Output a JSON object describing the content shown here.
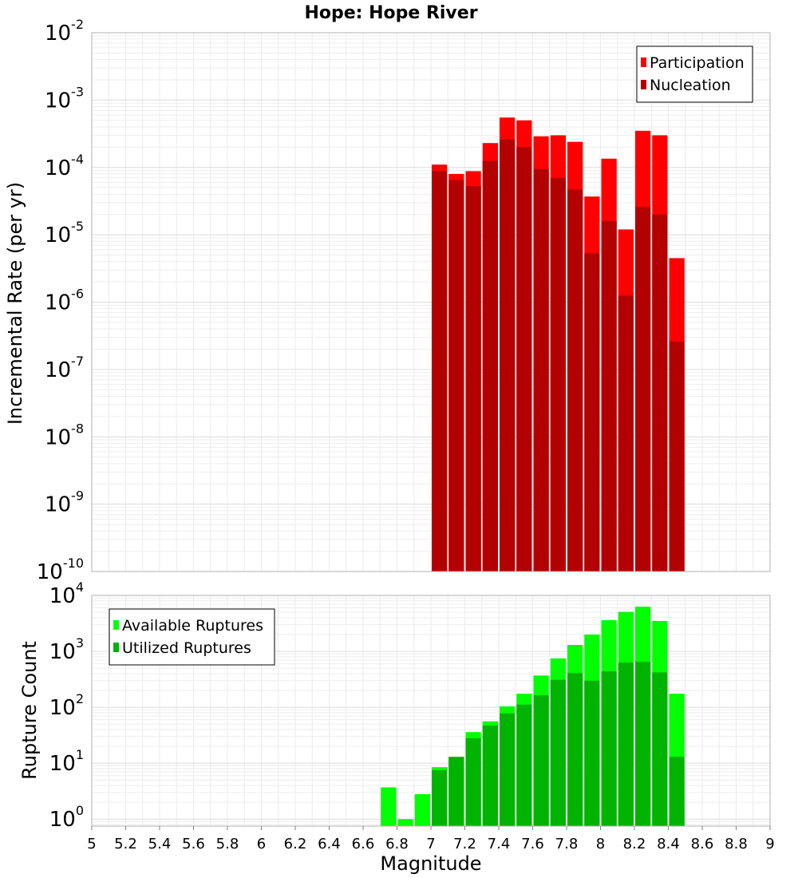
{
  "figure_title": "Hope: Hope River",
  "chart_data": [
    {
      "type": "bar",
      "title": "Hope: Hope River",
      "xlabel": "",
      "ylabel": "Incremental Rate (per yr)",
      "yscale": "log",
      "xlim": [
        5,
        9
      ],
      "ylim": [
        1e-10,
        0.01
      ],
      "y_tick_exponents": [
        -10,
        -9,
        -8,
        -7,
        -6,
        -5,
        -4,
        -3,
        -2
      ],
      "legend_position": "top-right",
      "grid": true,
      "bar_width": 0.1,
      "series": [
        {
          "name": "Participation",
          "color": "#ff0000",
          "x": [
            7.05,
            7.15,
            7.25,
            7.35,
            7.45,
            7.55,
            7.65,
            7.75,
            7.85,
            7.95,
            8.05,
            8.15,
            8.25,
            8.35,
            8.45
          ],
          "values": [
            0.00011,
            8e-05,
            8.8e-05,
            0.00023,
            0.00055,
            0.0005,
            0.00029,
            0.0003,
            0.00024,
            3.7e-05,
            0.000135,
            1.2e-05,
            0.00035,
            0.0003,
            4.5e-06
          ]
        },
        {
          "name": "Nucleation",
          "color": "#b30000",
          "x": [
            7.05,
            7.15,
            7.25,
            7.35,
            7.45,
            7.55,
            7.65,
            7.75,
            7.85,
            7.95,
            8.05,
            8.15,
            8.25,
            8.35,
            8.45
          ],
          "values": [
            8.8e-05,
            6.5e-05,
            5.3e-05,
            0.000125,
            0.00026,
            0.0002,
            9.5e-05,
            7e-05,
            4.7e-05,
            5.3e-06,
            1.6e-05,
            1.25e-06,
            2.6e-05,
            2e-05,
            2.6e-07
          ]
        }
      ]
    },
    {
      "type": "bar",
      "title": "",
      "xlabel": "Magnitude",
      "ylabel": "Rupture Count",
      "yscale": "log",
      "xlim": [
        5,
        9
      ],
      "ylim": [
        0.75,
        10000.0
      ],
      "x_ticks": [
        "5",
        "5.2",
        "5.4",
        "5.6",
        "5.8",
        "6",
        "6.2",
        "6.4",
        "6.6",
        "6.8",
        "7",
        "7.2",
        "7.4",
        "7.6",
        "7.8",
        "8",
        "8.2",
        "8.4",
        "8.6",
        "8.8",
        "9"
      ],
      "y_tick_exponents": [
        0,
        1,
        2,
        3,
        4
      ],
      "legend_position": "top-left",
      "grid": true,
      "bar_width": 0.1,
      "series": [
        {
          "name": "Available Ruptures",
          "color": "#00ff00",
          "x": [
            6.75,
            6.85,
            6.95,
            7.05,
            7.15,
            7.25,
            7.35,
            7.45,
            7.55,
            7.65,
            7.75,
            7.85,
            7.95,
            8.05,
            8.15,
            8.25,
            8.35,
            8.45
          ],
          "values": [
            3.7,
            1.0,
            2.8,
            8.5,
            13,
            36,
            56,
            104,
            175,
            370,
            750,
            1300,
            2000,
            3600,
            5100,
            6300,
            3500,
            175
          ]
        },
        {
          "name": "Utilized Ruptures",
          "color": "#00b300",
          "x": [
            6.75,
            6.85,
            6.95,
            7.05,
            7.15,
            7.25,
            7.35,
            7.45,
            7.55,
            7.65,
            7.75,
            7.85,
            7.95,
            8.05,
            8.15,
            8.25,
            8.35,
            8.45
          ],
          "values": [
            0,
            0,
            0,
            7.5,
            13,
            28,
            47,
            78,
            112,
            165,
            310,
            410,
            300,
            440,
            630,
            650,
            420,
            13
          ]
        }
      ]
    }
  ]
}
